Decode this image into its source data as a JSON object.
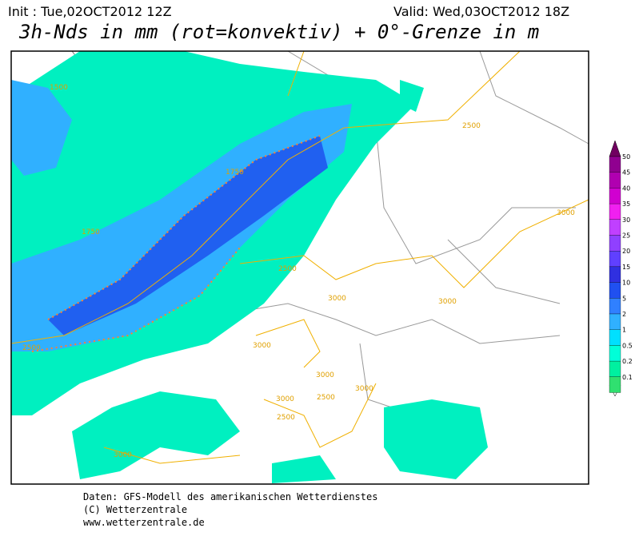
{
  "header": {
    "init": "Init : Tue,02OCT2012 12Z",
    "valid": "Valid: Wed,03OCT2012 18Z",
    "title": "3h-Nds in mm (rot=konvektiv) + 0°-Grenze in m"
  },
  "legend": {
    "labels": [
      "50",
      "45",
      "40",
      "35",
      "30",
      "25",
      "20",
      "15",
      "10",
      "5",
      "2",
      "1",
      "0.5",
      "0.2",
      "0.1"
    ],
    "colors": [
      "#900090",
      "#b000b0",
      "#d000d0",
      "#f020f0",
      "#c040ff",
      "#9040ff",
      "#6040ff",
      "#3030e0",
      "#2050f0",
      "#3080ff",
      "#30b0ff",
      "#00e0ff",
      "#00ffd8",
      "#00f0a0",
      "#30e070"
    ]
  },
  "contour_labels": [
    "1500",
    "1750",
    "1750",
    "2500",
    "2500",
    "3000",
    "3000",
    "3000",
    "3000",
    "3000",
    "3000",
    "2500",
    "2500",
    "3000",
    "3000",
    "2500"
  ],
  "footer": [
    "Daten: GFS-Modell des amerikanischen Wetterdienstes",
    "(C) Wetterzentrale",
    "www.wetterzentrale.de"
  ]
}
